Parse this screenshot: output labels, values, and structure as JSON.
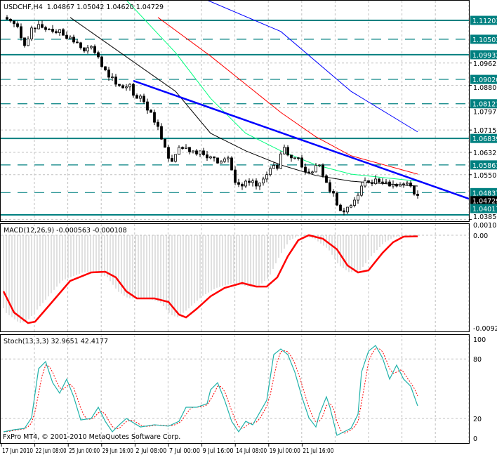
{
  "header": {
    "symbol_line": "USDCHF,H4  1.04867 1.05042 1.04620 1.04729",
    "macd_line": "MACD(12,26,9) -0.000563 -0.000108",
    "stoch_line": "Stoch(13,3,3) 32.9651 42.4177",
    "copyright": "FxPro MT4, © 2001-2010 MetaQuotes Software Corp."
  },
  "colors": {
    "level": "#008080",
    "trendline": "#0000ff",
    "ma_fast": "#000000",
    "ma_green": "#00ff7f",
    "ma_red": "#ff0000",
    "ma_blue": "#0000ff",
    "macd_signal": "#ff0000",
    "macd_hist": "#c0c0c0",
    "stoch_main": "#20b2aa",
    "stoch_signal": "#ff0000",
    "grid": "#c0c0c0"
  },
  "chart_data": [
    {
      "type": "candlestick",
      "title": "USDCHF,H4",
      "closes": [
        1.1131,
        1.1118,
        1.1097,
        1.1027,
        1.1092,
        1.1105,
        1.1086,
        1.1079,
        1.1086,
        1.1053,
        1.104,
        1.1019,
        1.1019,
        1.1001,
        1.0949,
        1.091,
        1.0884,
        1.0871,
        1.0884,
        1.0832,
        1.0819,
        1.078,
        1.0728,
        1.0651,
        1.0599,
        1.0651,
        1.0651,
        1.0638,
        1.0638,
        1.0612,
        1.0612,
        1.0599,
        1.0612,
        1.0521,
        1.0508,
        1.0521,
        1.0508,
        1.0534,
        1.0573,
        1.0573,
        1.0651,
        1.0612,
        1.0612,
        1.056,
        1.056,
        1.0586,
        1.0521,
        1.0482,
        1.0417,
        1.043,
        1.0456,
        1.0508,
        1.0521,
        1.0534,
        1.0521,
        1.0508,
        1.0508,
        1.0516,
        1.0508,
        1.0473
      ],
      "current_price": "1.04729",
      "price_ticks": [
        "1.09625",
        "1.08800",
        "1.07975",
        "1.07150",
        "1.06325",
        "1.05500",
        "1.03850"
      ],
      "levels": [
        {
          "price": "1.11201",
          "style": "solid"
        },
        {
          "price": "1.10503",
          "style": "dashed"
        },
        {
          "price": "1.09932",
          "style": "solid"
        },
        {
          "price": "1.09020",
          "style": "dashed"
        },
        {
          "price": "1.08121",
          "style": "dashed"
        },
        {
          "price": "1.06839",
          "style": "solid"
        },
        {
          "price": "1.05861",
          "style": "dashed"
        },
        {
          "price": "1.04837",
          "style": "dashed"
        },
        {
          "price": "1.04017",
          "style": "solid"
        }
      ],
      "moving_averages": [
        {
          "color": "ma_fast",
          "points": [
            [
              9.5,
              1.1131
            ],
            [
              24.5,
              1.0858
            ],
            [
              29.5,
              1.0703
            ],
            [
              34.5,
              1.0638
            ],
            [
              39.5,
              1.0586
            ],
            [
              44.5,
              1.0547
            ],
            [
              49.5,
              1.0526
            ],
            [
              59,
              1.0508
            ]
          ]
        },
        {
          "color": "ma_green",
          "points": [
            [
              17.5,
              1.1195
            ],
            [
              24.5,
              1.1001
            ],
            [
              29.5,
              1.0832
            ],
            [
              34.5,
              1.0703
            ],
            [
              39.5,
              1.0638
            ],
            [
              44.5,
              1.0586
            ],
            [
              49.5,
              1.0552
            ],
            [
              59,
              1.0526
            ]
          ]
        },
        {
          "color": "ma_red",
          "points": [
            [
              22,
              1.1131
            ],
            [
              29.5,
              1.0988
            ],
            [
              34.5,
              1.0884
            ],
            [
              39.5,
              1.078
            ],
            [
              44.5,
              1.069
            ],
            [
              49.5,
              1.062
            ],
            [
              59,
              1.0552
            ]
          ]
        },
        {
          "color": "ma_blue",
          "points": [
            [
              29,
              1.1195
            ],
            [
              39.5,
              1.1079
            ],
            [
              49.5,
              1.0858
            ],
            [
              59,
              1.0708
            ]
          ]
        }
      ],
      "trendline": [
        [
          18.5,
          1.0897
        ],
        [
          66.3,
          1.0461
        ]
      ]
    },
    {
      "type": "line",
      "title": "MACD(12,26,9)",
      "y_ticks": [
        "0.00108",
        "0.00",
        "-0.00922"
      ],
      "ylim": [
        -0.00922,
        0.00108
      ],
      "signal": [
        [
          0,
          -0.00558
        ],
        [
          1.5,
          -0.00768
        ],
        [
          3.5,
          -0.00873
        ],
        [
          4.5,
          -0.00859
        ],
        [
          6.5,
          -0.00698
        ],
        [
          9.5,
          -0.00454
        ],
        [
          12.5,
          -0.0037
        ],
        [
          14.5,
          -0.00363
        ],
        [
          16,
          -0.00419
        ],
        [
          17.5,
          -0.00558
        ],
        [
          19,
          -0.00628
        ],
        [
          21.5,
          -0.00628
        ],
        [
          23.5,
          -0.00663
        ],
        [
          25,
          -0.00789
        ],
        [
          26,
          -0.00817
        ],
        [
          27.5,
          -0.00733
        ],
        [
          29.5,
          -0.00607
        ],
        [
          31.5,
          -0.00524
        ],
        [
          34,
          -0.00475
        ],
        [
          36,
          -0.0051
        ],
        [
          37.5,
          -0.0051
        ],
        [
          39,
          -0.00419
        ],
        [
          40.5,
          -0.00209
        ],
        [
          42,
          -0.00049
        ],
        [
          43.5,
          0
        ],
        [
          45.5,
          -0.00035
        ],
        [
          47.5,
          -0.0014
        ],
        [
          49,
          -0.003
        ],
        [
          50.5,
          -0.0037
        ],
        [
          52,
          -0.00349
        ],
        [
          54,
          -0.00175
        ],
        [
          55.5,
          -0.0007
        ],
        [
          57,
          -0.00014
        ],
        [
          59,
          -0.00011
        ]
      ]
    },
    {
      "type": "line",
      "title": "Stoch(13,3,3)",
      "y_ticks": [
        "100",
        "80",
        "20",
        "0"
      ],
      "ylim": [
        0,
        100
      ],
      "main": [
        [
          0,
          6.4
        ],
        [
          1.5,
          8.5
        ],
        [
          3,
          9.9
        ],
        [
          4,
          20.6
        ],
        [
          5,
          70.2
        ],
        [
          6,
          77.3
        ],
        [
          7,
          56.0
        ],
        [
          8,
          45.4
        ],
        [
          9,
          59.6
        ],
        [
          10,
          41.8
        ],
        [
          11,
          18.4
        ],
        [
          12.5,
          19.9
        ],
        [
          13.5,
          31.2
        ],
        [
          14.5,
          17.0
        ],
        [
          15.5,
          6.4
        ],
        [
          16.5,
          13.5
        ],
        [
          17.5,
          19.9
        ],
        [
          19.5,
          11.3
        ],
        [
          21.5,
          13.5
        ],
        [
          23.5,
          12.1
        ],
        [
          25,
          17.0
        ],
        [
          26,
          31.2
        ],
        [
          27.5,
          31.2
        ],
        [
          29,
          34.8
        ],
        [
          29.5,
          48.9
        ],
        [
          30.5,
          56.0
        ],
        [
          31.5,
          38.3
        ],
        [
          32.5,
          17.0
        ],
        [
          33.5,
          6.4
        ],
        [
          34.5,
          17.0
        ],
        [
          35.5,
          13.5
        ],
        [
          37.5,
          38.3
        ],
        [
          38.5,
          84.4
        ],
        [
          39.5,
          90.1
        ],
        [
          40.5,
          84.4
        ],
        [
          41.5,
          66.7
        ],
        [
          42.5,
          41.8
        ],
        [
          43.5,
          20.6
        ],
        [
          44.5,
          11.3
        ],
        [
          45,
          24.1
        ],
        [
          46,
          41.8
        ],
        [
          46.5,
          31.2
        ],
        [
          47.5,
          2.8
        ],
        [
          48.5,
          6.4
        ],
        [
          49.5,
          9.9
        ],
        [
          50.5,
          24.1
        ],
        [
          51,
          66.7
        ],
        [
          52,
          87.9
        ],
        [
          53,
          93.6
        ],
        [
          54,
          80.9
        ],
        [
          55,
          59.6
        ],
        [
          56,
          73.8
        ],
        [
          57,
          59.6
        ],
        [
          58,
          52.5
        ],
        [
          59,
          32.6
        ]
      ]
    }
  ],
  "time_axis": [
    "17 Jun 2010",
    "22 Jun 08:00",
    "25 Jun 00:00",
    "29 Jun 16:00",
    "2 Jul 08:00",
    "7 Jul 00:00",
    "9 Jul 16:00",
    "14 Jul 08:00",
    "19 Jul 00:00",
    "21 Jul 16:00"
  ]
}
